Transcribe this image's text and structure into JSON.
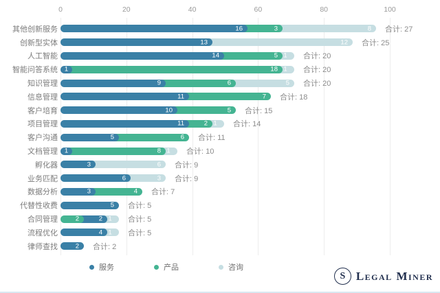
{
  "chart_data": {
    "type": "bar",
    "orientation": "horizontal",
    "stacked": true,
    "title": "",
    "xlabel": "",
    "ylabel": "",
    "xlim": [
      0,
      100
    ],
    "x_ticks": [
      0,
      20,
      40,
      60,
      80,
      100
    ],
    "grid": true,
    "legend_position": "bottom",
    "total_prefix": "合计: ",
    "legend": [
      {
        "name": "服务",
        "key": "service",
        "color": "#3a80a6"
      },
      {
        "name": "产品",
        "key": "product",
        "color": "#44b492"
      },
      {
        "name": "咨询",
        "key": "consult",
        "color": "#c6dee2"
      }
    ],
    "rows": [
      {
        "label": "其他创新服务",
        "total": 27,
        "segments": [
          {
            "series": "service",
            "value": 16
          },
          {
            "series": "product",
            "value": 3
          },
          {
            "series": "consult",
            "value": 8
          }
        ]
      },
      {
        "label": "创新型实体",
        "total": 25,
        "segments": [
          {
            "series": "service",
            "value": 13
          },
          {
            "series": "consult",
            "value": 12
          }
        ]
      },
      {
        "label": "人工智能",
        "total": 20,
        "segments": [
          {
            "series": "service",
            "value": 14
          },
          {
            "series": "product",
            "value": 5
          },
          {
            "series": "consult",
            "value": 1
          }
        ]
      },
      {
        "label": "智能问答系统",
        "total": 20,
        "segments": [
          {
            "series": "service",
            "value": 1
          },
          {
            "series": "product",
            "value": 18
          },
          {
            "series": "consult",
            "value": 1
          }
        ]
      },
      {
        "label": "知识管理",
        "total": 20,
        "segments": [
          {
            "series": "service",
            "value": 9
          },
          {
            "series": "product",
            "value": 6
          },
          {
            "series": "consult",
            "value": 5
          }
        ]
      },
      {
        "label": "信息管理",
        "total": 18,
        "segments": [
          {
            "series": "service",
            "value": 11
          },
          {
            "series": "product",
            "value": 7
          }
        ]
      },
      {
        "label": "客户培育",
        "total": 15,
        "segments": [
          {
            "series": "service",
            "value": 10
          },
          {
            "series": "product",
            "value": 5
          }
        ]
      },
      {
        "label": "项目管理",
        "total": 14,
        "segments": [
          {
            "series": "service",
            "value": 11
          },
          {
            "series": "product",
            "value": 2
          },
          {
            "series": "consult",
            "value": 1
          }
        ]
      },
      {
        "label": "客户沟通",
        "total": 11,
        "segments": [
          {
            "series": "service",
            "value": 5
          },
          {
            "series": "product",
            "value": 6
          }
        ]
      },
      {
        "label": "文档管理",
        "total": 10,
        "segments": [
          {
            "series": "service",
            "value": 1
          },
          {
            "series": "product",
            "value": 8
          },
          {
            "series": "consult",
            "value": 1
          }
        ]
      },
      {
        "label": "孵化器",
        "total": 9,
        "segments": [
          {
            "series": "service",
            "value": 3
          },
          {
            "series": "consult",
            "value": 6
          }
        ]
      },
      {
        "label": "业务匹配",
        "total": 9,
        "segments": [
          {
            "series": "service",
            "value": 6
          },
          {
            "series": "consult",
            "value": 3
          }
        ]
      },
      {
        "label": "数据分析",
        "total": 7,
        "segments": [
          {
            "series": "service",
            "value": 3
          },
          {
            "series": "product",
            "value": 4
          }
        ]
      },
      {
        "label": "代替性收费",
        "total": 5,
        "segments": [
          {
            "series": "service",
            "value": 5
          }
        ]
      },
      {
        "label": "合同管理",
        "total": 5,
        "segments": [
          {
            "series": "product",
            "value": 2
          },
          {
            "series": "service",
            "value": 2
          },
          {
            "series": "consult",
            "value": 1
          }
        ]
      },
      {
        "label": "流程优化",
        "total": 5,
        "segments": [
          {
            "series": "service",
            "value": 4
          },
          {
            "series": "consult",
            "value": 1
          }
        ]
      },
      {
        "label": "律师查找",
        "total": 2,
        "segments": [
          {
            "series": "service",
            "value": 2
          }
        ]
      }
    ]
  },
  "logo": {
    "monogram": "S",
    "text": "Legal Miner"
  }
}
